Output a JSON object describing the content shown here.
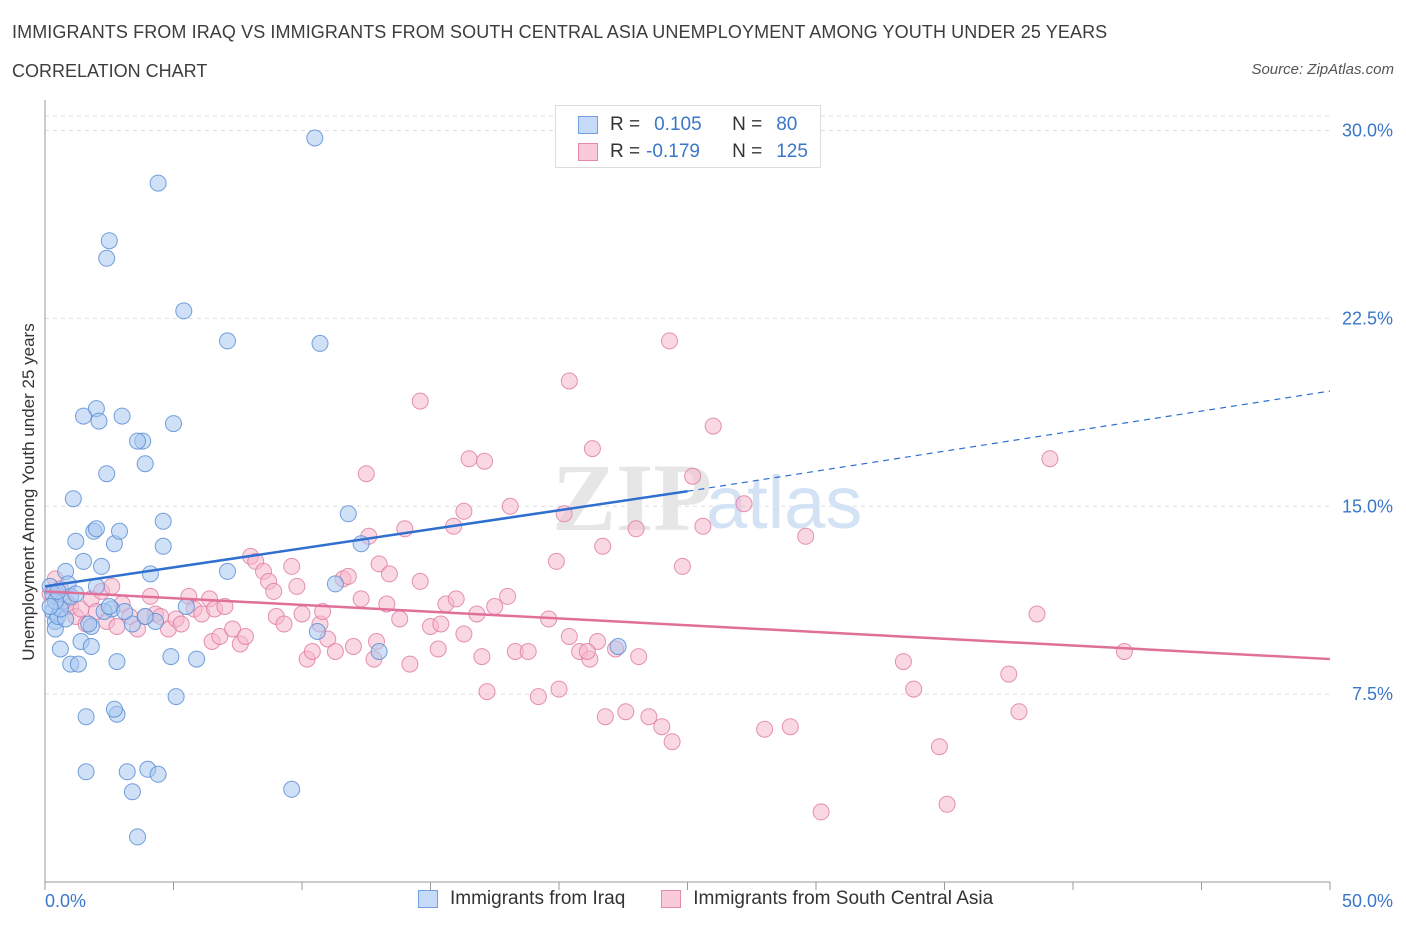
{
  "title": "IMMIGRANTS FROM IRAQ VS IMMIGRANTS FROM SOUTH CENTRAL ASIA UNEMPLOYMENT AMONG YOUTH UNDER 25 YEARS",
  "subtitle": "CORRELATION CHART",
  "source": "Source: ZipAtlas.com",
  "watermark": {
    "zip": "ZIP",
    "atlas": "atlas"
  },
  "legend": {
    "r_label": "R =",
    "n_label": "N =",
    "iraq": {
      "r": "0.105",
      "n": "80"
    },
    "sca": {
      "r": "-0.179",
      "n": "125"
    }
  },
  "colors": {
    "iraq_fill": "#a9c8f0",
    "iraq_stroke": "#5b8fd6",
    "iraq_line": "#2e6fcf",
    "sca_fill": "#f6b8cc",
    "sca_stroke": "#e07fa3",
    "sca_line": "#e0709a",
    "tick_text": "#3a77c9",
    "grid": "#dddddd"
  },
  "chart_data": {
    "type": "scatter",
    "title": "IMMIGRANTS FROM IRAQ VS IMMIGRANTS FROM SOUTH CENTRAL ASIA UNEMPLOYMENT AMONG YOUTH UNDER 25 YEARS",
    "xlabel": "",
    "ylabel": "Unemployment Among Youth under 25 years",
    "xlim": [
      0,
      50
    ],
    "ylim": [
      0,
      30.5
    ],
    "x_tick_labels": [
      "0.0%",
      "50.0%"
    ],
    "y_ticks": [
      7.5,
      15.0,
      22.5,
      30.0
    ],
    "y_tick_labels": [
      "7.5%",
      "15.0%",
      "22.5%",
      "30.0%"
    ],
    "series": [
      {
        "name": "Immigrants from Iraq",
        "r": 0.105,
        "n": 80,
        "trend": {
          "x0": 0,
          "y0": 11.8,
          "x1": 25,
          "y1": 15.6,
          "dash_to_x": 50,
          "dash_to_y": 19.6
        },
        "points": [
          [
            0.2,
            11.8
          ],
          [
            0.3,
            11.5
          ],
          [
            0.3,
            10.8
          ],
          [
            0.4,
            10.4
          ],
          [
            0.4,
            10.1
          ],
          [
            0.5,
            10.6
          ],
          [
            0.6,
            9.3
          ],
          [
            0.7,
            11.2
          ],
          [
            0.8,
            12.4
          ],
          [
            0.8,
            10.5
          ],
          [
            0.9,
            11.9
          ],
          [
            1.0,
            11.4
          ],
          [
            1.0,
            8.7
          ],
          [
            1.1,
            15.3
          ],
          [
            1.2,
            13.6
          ],
          [
            1.3,
            8.7
          ],
          [
            1.4,
            9.6
          ],
          [
            1.5,
            12.8
          ],
          [
            1.6,
            6.6
          ],
          [
            1.6,
            4.4
          ],
          [
            1.8,
            10.2
          ],
          [
            1.8,
            9.4
          ],
          [
            1.9,
            14.0
          ],
          [
            2.0,
            14.1
          ],
          [
            2.0,
            11.8
          ],
          [
            2.2,
            12.6
          ],
          [
            2.4,
            16.3
          ],
          [
            2.6,
            10.9
          ],
          [
            2.7,
            13.5
          ],
          [
            2.8,
            6.7
          ],
          [
            2.8,
            8.8
          ],
          [
            2.9,
            14.0
          ],
          [
            3.2,
            4.4
          ],
          [
            3.4,
            3.6
          ],
          [
            3.6,
            1.8
          ],
          [
            3.8,
            17.6
          ],
          [
            3.9,
            16.7
          ],
          [
            4.0,
            4.5
          ],
          [
            4.1,
            12.3
          ],
          [
            4.3,
            10.4
          ],
          [
            4.4,
            4.3
          ],
          [
            4.6,
            14.4
          ],
          [
            4.6,
            13.4
          ],
          [
            4.9,
            9.0
          ],
          [
            5.1,
            7.4
          ],
          [
            5.5,
            11.0
          ],
          [
            5.9,
            8.9
          ],
          [
            7.1,
            12.4
          ],
          [
            9.6,
            3.7
          ],
          [
            10.5,
            29.7
          ],
          [
            4.4,
            27.9
          ],
          [
            2.5,
            25.6
          ],
          [
            2.4,
            24.9
          ],
          [
            5.4,
            22.8
          ],
          [
            7.1,
            21.6
          ],
          [
            10.7,
            21.5
          ],
          [
            2.0,
            18.9
          ],
          [
            1.5,
            18.6
          ],
          [
            2.1,
            18.4
          ],
          [
            3.0,
            18.6
          ],
          [
            5.0,
            18.3
          ],
          [
            3.6,
            17.6
          ],
          [
            11.8,
            14.7
          ],
          [
            12.3,
            13.5
          ],
          [
            11.3,
            11.9
          ],
          [
            10.6,
            10.0
          ],
          [
            13.0,
            9.2
          ],
          [
            22.3,
            9.4
          ],
          [
            3.4,
            10.3
          ],
          [
            1.2,
            11.5
          ],
          [
            0.6,
            10.9
          ],
          [
            1.7,
            10.3
          ],
          [
            2.3,
            10.8
          ],
          [
            3.9,
            10.6
          ],
          [
            2.5,
            11.0
          ],
          [
            0.4,
            11.2
          ],
          [
            0.2,
            11.0
          ],
          [
            2.7,
            6.9
          ],
          [
            0.5,
            11.6
          ],
          [
            3.1,
            10.8
          ]
        ]
      },
      {
        "name": "Immigrants from South Central Asia",
        "r": -0.179,
        "n": 125,
        "trend": {
          "x0": 0,
          "y0": 11.6,
          "x1": 50,
          "y1": 8.9
        },
        "points": [
          [
            0.2,
            11.5
          ],
          [
            0.4,
            12.1
          ],
          [
            0.6,
            11.7
          ],
          [
            0.8,
            11.2
          ],
          [
            1.0,
            11.0
          ],
          [
            1.2,
            10.6
          ],
          [
            1.4,
            10.9
          ],
          [
            1.6,
            10.3
          ],
          [
            1.8,
            11.3
          ],
          [
            2.0,
            10.8
          ],
          [
            2.2,
            11.6
          ],
          [
            2.4,
            10.4
          ],
          [
            2.6,
            11.8
          ],
          [
            2.8,
            10.2
          ],
          [
            3.0,
            11.1
          ],
          [
            3.3,
            10.6
          ],
          [
            3.6,
            10.1
          ],
          [
            3.9,
            10.6
          ],
          [
            4.1,
            11.4
          ],
          [
            4.3,
            10.7
          ],
          [
            4.5,
            10.6
          ],
          [
            4.8,
            10.1
          ],
          [
            5.1,
            10.5
          ],
          [
            5.3,
            10.3
          ],
          [
            5.6,
            11.4
          ],
          [
            5.8,
            10.9
          ],
          [
            6.1,
            10.7
          ],
          [
            6.4,
            11.3
          ],
          [
            6.5,
            9.6
          ],
          [
            6.6,
            10.9
          ],
          [
            6.8,
            9.8
          ],
          [
            7.0,
            11.0
          ],
          [
            7.3,
            10.1
          ],
          [
            7.6,
            9.5
          ],
          [
            7.8,
            9.8
          ],
          [
            8.0,
            13.0
          ],
          [
            8.2,
            12.8
          ],
          [
            8.5,
            12.4
          ],
          [
            8.7,
            12.0
          ],
          [
            8.9,
            11.6
          ],
          [
            9.0,
            10.6
          ],
          [
            9.3,
            10.3
          ],
          [
            9.6,
            12.6
          ],
          [
            9.8,
            11.8
          ],
          [
            10.0,
            10.7
          ],
          [
            10.2,
            8.9
          ],
          [
            10.4,
            9.2
          ],
          [
            10.7,
            10.3
          ],
          [
            11.0,
            9.7
          ],
          [
            11.3,
            9.2
          ],
          [
            11.6,
            12.1
          ],
          [
            12.0,
            9.4
          ],
          [
            12.3,
            11.3
          ],
          [
            12.6,
            13.8
          ],
          [
            12.8,
            8.9
          ],
          [
            13.0,
            12.7
          ],
          [
            13.4,
            12.3
          ],
          [
            13.8,
            10.5
          ],
          [
            14.2,
            8.7
          ],
          [
            14.6,
            12.0
          ],
          [
            15.0,
            10.2
          ],
          [
            15.3,
            9.3
          ],
          [
            15.6,
            11.1
          ],
          [
            16.0,
            11.3
          ],
          [
            16.3,
            9.9
          ],
          [
            16.8,
            10.7
          ],
          [
            17.2,
            7.6
          ],
          [
            17.5,
            11.0
          ],
          [
            18.0,
            11.4
          ],
          [
            18.3,
            9.2
          ],
          [
            18.8,
            9.2
          ],
          [
            19.2,
            7.4
          ],
          [
            19.6,
            10.5
          ],
          [
            20.0,
            7.7
          ],
          [
            20.4,
            9.8
          ],
          [
            20.8,
            9.2
          ],
          [
            21.2,
            8.9
          ],
          [
            21.5,
            9.6
          ],
          [
            21.8,
            6.6
          ],
          [
            22.2,
            9.3
          ],
          [
            22.6,
            6.8
          ],
          [
            23.1,
            9.0
          ],
          [
            23.5,
            6.6
          ],
          [
            24.0,
            6.2
          ],
          [
            24.4,
            5.6
          ],
          [
            24.8,
            12.6
          ],
          [
            25.2,
            16.2
          ],
          [
            25.6,
            14.2
          ],
          [
            26.0,
            18.2
          ],
          [
            27.2,
            15.1
          ],
          [
            28.0,
            6.1
          ],
          [
            29.0,
            6.2
          ],
          [
            29.6,
            13.8
          ],
          [
            30.2,
            2.8
          ],
          [
            33.4,
            8.8
          ],
          [
            33.8,
            7.7
          ],
          [
            34.8,
            5.4
          ],
          [
            35.1,
            3.1
          ],
          [
            37.5,
            8.3
          ],
          [
            37.9,
            6.8
          ],
          [
            38.6,
            10.7
          ],
          [
            39.1,
            16.9
          ],
          [
            42.0,
            9.2
          ],
          [
            24.3,
            21.6
          ],
          [
            20.4,
            20.0
          ],
          [
            14.6,
            19.2
          ],
          [
            21.3,
            17.3
          ],
          [
            16.5,
            16.9
          ],
          [
            17.1,
            16.8
          ],
          [
            12.5,
            16.3
          ],
          [
            16.3,
            14.8
          ],
          [
            18.1,
            15.0
          ],
          [
            14.0,
            14.1
          ],
          [
            15.9,
            14.2
          ],
          [
            20.2,
            14.7
          ],
          [
            23.0,
            14.1
          ],
          [
            21.7,
            13.4
          ],
          [
            19.9,
            12.8
          ],
          [
            15.4,
            10.3
          ],
          [
            13.3,
            11.1
          ],
          [
            11.8,
            12.2
          ],
          [
            12.9,
            9.6
          ],
          [
            17.0,
            9.0
          ],
          [
            21.1,
            9.2
          ],
          [
            10.8,
            10.8
          ]
        ]
      }
    ]
  },
  "bottom_legend": [
    "Immigrants from Iraq",
    "Immigrants from South Central Asia"
  ]
}
